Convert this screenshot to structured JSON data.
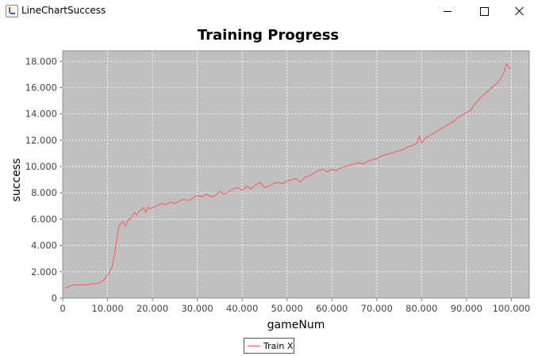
{
  "window": {
    "title": "LineChartSuccess",
    "app_icon": "java-cup-icon",
    "controls": [
      "minimize-icon",
      "maximize-icon",
      "close-icon"
    ]
  },
  "colors": {
    "plot_background": "#c0c0c0",
    "grid": "#ffffff",
    "series": "#ff5555",
    "axis": "#808080"
  },
  "chart_data": {
    "type": "line",
    "title": "Training Progress",
    "xlabel": "gameNum",
    "ylabel": "success",
    "xlim": [
      0,
      104000
    ],
    "ylim": [
      0,
      18800
    ],
    "x_ticks": [
      0,
      10000,
      20000,
      30000,
      40000,
      50000,
      60000,
      70000,
      80000,
      90000,
      100000
    ],
    "x_tick_labels": [
      "0",
      "10.000",
      "20.000",
      "30.000",
      "40.000",
      "50.000",
      "60.000",
      "70.000",
      "80.000",
      "90.000",
      "100.000"
    ],
    "y_ticks": [
      0,
      2000,
      4000,
      6000,
      8000,
      10000,
      12000,
      14000,
      16000,
      18000
    ],
    "y_tick_labels": [
      "0",
      "2.000",
      "4.000",
      "6.000",
      "8.000",
      "10.000",
      "12.000",
      "14.000",
      "16.000",
      "18.000"
    ],
    "grid": true,
    "legend_position": "bottom-center",
    "series": [
      {
        "name": "Train X",
        "x": [
          500,
          1500,
          2500,
          3500,
          4500,
          5500,
          6500,
          7500,
          8500,
          9500,
          10500,
          11000,
          11500,
          12000,
          12500,
          13000,
          13500,
          14000,
          14500,
          15000,
          15500,
          16000,
          16500,
          17000,
          17500,
          18000,
          18500,
          19000,
          19500,
          20000,
          21000,
          22000,
          23000,
          24000,
          25000,
          26000,
          27000,
          28000,
          29000,
          30000,
          31000,
          32000,
          33000,
          34000,
          35000,
          36000,
          37000,
          38000,
          39000,
          40000,
          41000,
          42000,
          43000,
          44000,
          45000,
          46000,
          47000,
          48000,
          49000,
          50000,
          51000,
          52000,
          53000,
          54000,
          55000,
          56000,
          57000,
          58000,
          59000,
          60000,
          61000,
          62000,
          63000,
          64000,
          65000,
          66000,
          67000,
          68000,
          69000,
          70000,
          71000,
          72000,
          73000,
          74000,
          75000,
          76000,
          77000,
          78000,
          79000,
          79500,
          80000,
          81000,
          82000,
          83000,
          84000,
          85000,
          86000,
          87000,
          88000,
          89000,
          90000,
          91000,
          91500,
          92000,
          93000,
          94000,
          95000,
          96000,
          97000,
          98000,
          98500,
          99000,
          99500,
          100000
        ],
        "y": [
          750,
          900,
          1000,
          980,
          1020,
          1000,
          1100,
          1100,
          1200,
          1500,
          2000,
          2400,
          3200,
          4400,
          5400,
          5700,
          5800,
          5500,
          5900,
          6000,
          6200,
          6500,
          6300,
          6600,
          6700,
          6900,
          6500,
          6900,
          6800,
          6900,
          7000,
          7200,
          7100,
          7300,
          7200,
          7400,
          7500,
          7400,
          7600,
          7800,
          7700,
          7900,
          7700,
          7800,
          8100,
          7900,
          8100,
          8300,
          8400,
          8200,
          8500,
          8300,
          8600,
          8800,
          8400,
          8500,
          8700,
          8800,
          8700,
          8900,
          9000,
          9100,
          8800,
          9200,
          9300,
          9500,
          9700,
          9800,
          9600,
          9800,
          9700,
          9900,
          10000,
          10100,
          10200,
          10300,
          10200,
          10400,
          10500,
          10600,
          10800,
          10900,
          11000,
          11100,
          11200,
          11300,
          11500,
          11600,
          11800,
          12300,
          11800,
          12200,
          12400,
          12600,
          12800,
          13000,
          13200,
          13400,
          13700,
          13900,
          14100,
          14300,
          14600,
          14800,
          15200,
          15500,
          15800,
          16100,
          16400,
          16900,
          17300,
          17800,
          17500,
          17500
        ]
      }
    ]
  }
}
